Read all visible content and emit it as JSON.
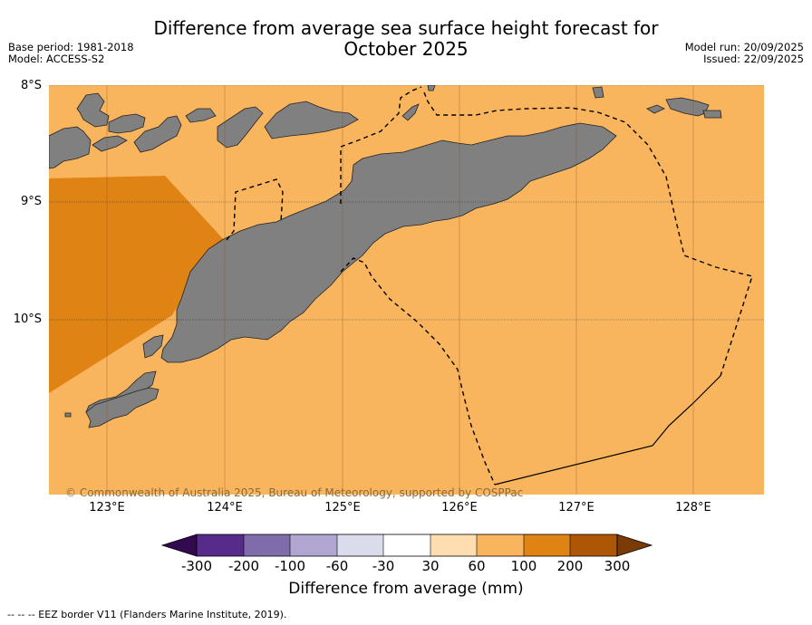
{
  "header": {
    "title_line1": "Difference from average sea surface height forecast for",
    "title_line2": "October 2025",
    "base_period": "Base period: 1981-2018",
    "model": "Model: ACCESS-S2",
    "model_run": "Model run: 20/09/2025",
    "issued": "Issued: 22/09/2025"
  },
  "map": {
    "lat_labels": [
      "8°S",
      "9°S",
      "10°S"
    ],
    "lon_labels": [
      "123°E",
      "124°E",
      "125°E",
      "126°E",
      "127°E",
      "128°E"
    ],
    "copyright": "© Commonwealth of Australia 2025, Bureau of Meteorology, supported by COSPPac",
    "colors": {
      "ocean": "#f9b55e",
      "anomaly_high": "#e08315",
      "land": "#808080"
    }
  },
  "colorbar": {
    "ticks": [
      "-300",
      "-200",
      "-100",
      "-60",
      "-30",
      "30",
      "60",
      "100",
      "200",
      "300"
    ],
    "colors": [
      "#562b8a",
      "#7f6dab",
      "#b1a6d1",
      "#dadcec",
      "#ffffff",
      "#fedeb0",
      "#f9b55e",
      "#e08315",
      "#ad5605"
    ],
    "under_color": "#330a4f",
    "over_color": "#7a3b06",
    "title": "Difference from average (mm)"
  },
  "footnote": "--  --  -- EEZ border V11 (Flanders Marine Institute, 2019)."
}
